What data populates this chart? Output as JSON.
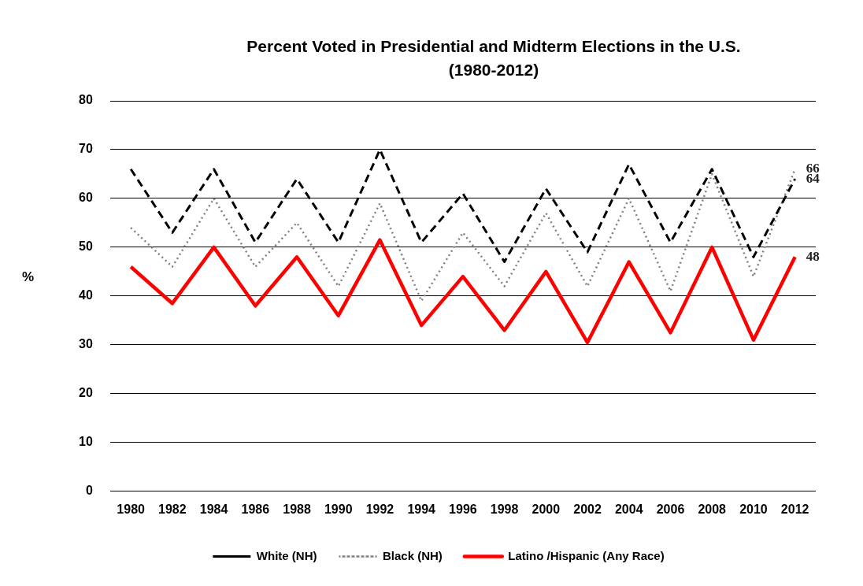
{
  "chart_data": {
    "type": "line",
    "title": "Percent Voted in Presidential and Midterm Elections in the U.S. (1980-2012)",
    "ylabel": "%",
    "categories": [
      "1980",
      "1982",
      "1984",
      "1986",
      "1988",
      "1990",
      "1992",
      "1994",
      "1996",
      "1998",
      "2000",
      "2002",
      "2004",
      "2006",
      "2008",
      "2010",
      "2012"
    ],
    "ylim": [
      0,
      80
    ],
    "yticks": [
      0,
      10,
      20,
      30,
      40,
      50,
      60,
      70,
      80
    ],
    "grid": "y",
    "legend": "bottom",
    "marker": "none",
    "series": [
      {
        "name": "White (NH)",
        "color": "#000000",
        "line_style": "dashed",
        "values": [
          66,
          53,
          66,
          51,
          64,
          51,
          70,
          51,
          61,
          47,
          62,
          49,
          67,
          51,
          66,
          48,
          64
        ],
        "value_labels": [
          null,
          null,
          null,
          null,
          null,
          null,
          null,
          null,
          null,
          null,
          null,
          null,
          null,
          null,
          null,
          null,
          "64"
        ]
      },
      {
        "name": "Black (NH)",
        "color": "#808080",
        "line_style": "dotted",
        "values": [
          54,
          46,
          60,
          46,
          55,
          42,
          59,
          39,
          53,
          42,
          57,
          42,
          60,
          41,
          65,
          44,
          66
        ],
        "value_labels": [
          null,
          null,
          null,
          null,
          null,
          null,
          null,
          null,
          null,
          null,
          null,
          null,
          null,
          null,
          null,
          null,
          "66"
        ]
      },
      {
        "name": "Latino /Hispanic (Any Race)",
        "color": "#ff0000",
        "line_style": "solid",
        "values": [
          46,
          38.5,
          50,
          38,
          48,
          36,
          51.5,
          34,
          44,
          33,
          45,
          30.5,
          47,
          32.5,
          50,
          31,
          48
        ],
        "value_labels": [
          null,
          null,
          null,
          null,
          null,
          null,
          null,
          null,
          null,
          null,
          null,
          null,
          null,
          null,
          null,
          null,
          "48"
        ]
      }
    ]
  }
}
